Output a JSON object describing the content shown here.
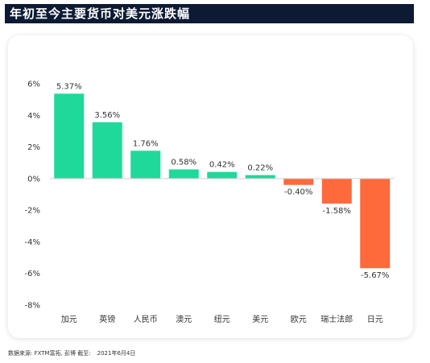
{
  "header": {
    "title": "年初至今主要货币对美元涨跌幅"
  },
  "footer": {
    "source": "数据来源: FXTM富拓, 彭博 截至:",
    "date": "2021年6月4日"
  },
  "colors": {
    "positive": "#1ed99a",
    "negative": "#fe6a3b",
    "title_bg": "#0c1a33",
    "axis_text": "#333333"
  },
  "chart_data": {
    "type": "bar",
    "categories": [
      "加元",
      "英镑",
      "人民币",
      "澳元",
      "纽元",
      "美元",
      "欧元",
      "瑞士法郎",
      "日元"
    ],
    "values": [
      5.37,
      3.56,
      1.76,
      0.58,
      0.42,
      0.22,
      -0.4,
      -1.58,
      -5.67
    ],
    "value_labels": [
      "5.37%",
      "3.56%",
      "1.76%",
      "0.58%",
      "0.42%",
      "0.22%",
      "-0.40%",
      "-1.58%",
      "-5.67%"
    ],
    "ylim": [
      -8,
      6
    ],
    "yticks": [
      6,
      4,
      2,
      0,
      -2,
      -4,
      -6,
      -8
    ],
    "ytick_labels": [
      "6%",
      "4%",
      "2%",
      "0%",
      "-2%",
      "-4%",
      "-6%",
      "-8%"
    ],
    "grid": false,
    "legend": "none"
  }
}
